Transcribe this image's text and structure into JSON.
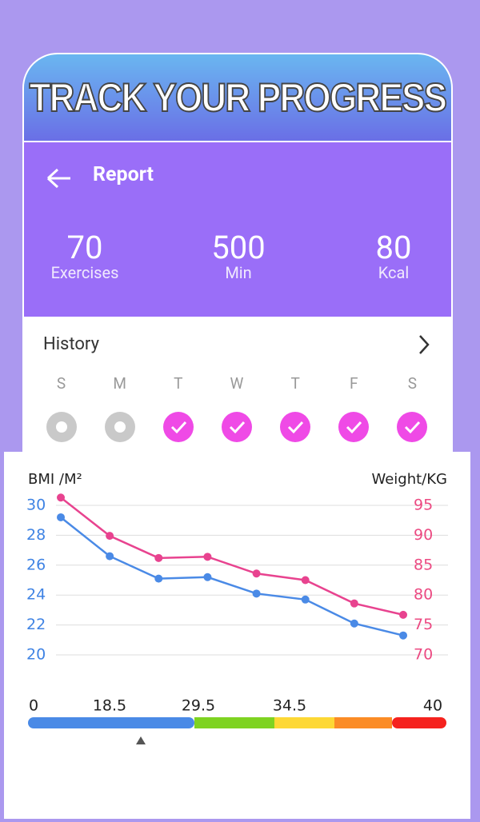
{
  "banner": {
    "title": "TRACK YOUR PROGRESS"
  },
  "header": {
    "title": "Report"
  },
  "stats": [
    {
      "value": 70,
      "label": "Exercises"
    },
    {
      "value": 500,
      "label": "Min"
    },
    {
      "value": 80,
      "label": "Kcal"
    }
  ],
  "history": {
    "title": "History",
    "days": [
      "S",
      "M",
      "T",
      "W",
      "T",
      "F",
      "S"
    ],
    "done": [
      false,
      false,
      true,
      true,
      true,
      true,
      true
    ]
  },
  "chart_data": {
    "type": "line",
    "ylabel": "BMI /M²",
    "y2label": "Weight/KG",
    "categories": [
      null,
      null,
      null,
      null,
      null,
      null,
      null,
      null
    ],
    "series": [
      {
        "name": "BMI",
        "color": "#4a8ae6",
        "values": [
          29.2,
          26.6,
          25.1,
          25.2,
          24.1,
          23.7,
          22.1,
          21.3
        ]
      },
      {
        "name": "Weight",
        "color": "#e8438f",
        "axis": "y2",
        "values": [
          96.3,
          89.9,
          86.2,
          86.4,
          83.6,
          82.5,
          78.6,
          76.7
        ]
      }
    ],
    "ylim": [
      20,
      30
    ],
    "yticks": [
      20,
      22,
      24,
      26,
      28,
      30
    ],
    "y2lim": [
      70,
      95
    ],
    "y2ticks": [
      70,
      75,
      80,
      85,
      90,
      95
    ],
    "ytick_color": "#3f83e4",
    "y2tick_color": "#ec4a82",
    "grid": true
  },
  "bmi_scale": {
    "labels": [
      0,
      18.5,
      29.5,
      34.5,
      40
    ],
    "colors": [
      "#4a8ae6",
      "#7ed321",
      "#fdd835",
      "#fb8c26",
      "#f5221e"
    ]
  }
}
